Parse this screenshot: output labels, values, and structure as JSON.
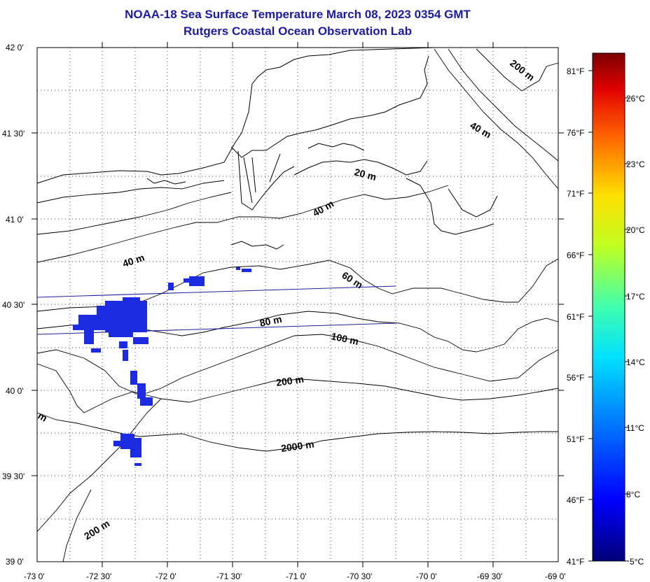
{
  "title": {
    "line1": "NOAA-18 Sea Surface Temperature March 08, 2023 0354 GMT",
    "line2": "Rutgers Coastal Ocean Observation Lab"
  },
  "colors": {
    "title": "#1a1aa6",
    "coast": "#000000",
    "track": "#1f1f9c",
    "sst_pixels": "#1c2be0",
    "grid": "#000000"
  },
  "axes": {
    "lat_labels": [
      "42 0'",
      "41 30'",
      "41 0'",
      "40 30'",
      "40 0'",
      "39 30'",
      "39 0'"
    ],
    "lon_labels": [
      "-73 0'",
      "-72 30'",
      "-72 0'",
      "-71 30'",
      "-71 0'",
      "-70 30'",
      "-70 0'",
      "-69 30'",
      "-69 0'"
    ],
    "lat_range": [
      39.0,
      42.0
    ],
    "lon_range": [
      -73.0,
      -69.0
    ],
    "grid": "dotted"
  },
  "contour_labels": [
    "200 m",
    "40 m",
    "20 m",
    "40 m",
    "40 m",
    "60 m",
    "80 m",
    "100 m",
    "200 m",
    "2000 m",
    "200 m",
    "m"
  ],
  "colorbar": {
    "celsius": [
      "26°C",
      "23°C",
      "20°C",
      "17°C",
      "14°C",
      "11°C",
      "8°C",
      "5°C"
    ],
    "fahrenheit": [
      "81°F",
      "76°F",
      "71°F",
      "66°F",
      "61°F",
      "56°F",
      "51°F",
      "46°F",
      "41°F"
    ]
  }
}
